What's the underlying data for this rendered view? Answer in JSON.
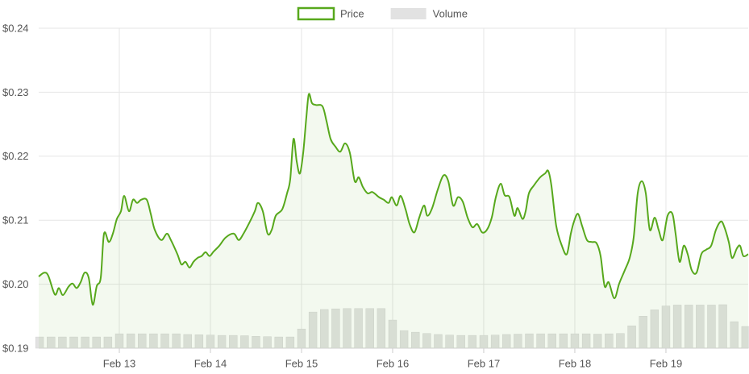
{
  "chart_data": {
    "type": "line",
    "xlim": [
      12.115,
      19.903
    ],
    "xticks": [
      {
        "value": 13,
        "label": "Feb 13"
      },
      {
        "value": 14,
        "label": "Feb 14"
      },
      {
        "value": 15,
        "label": "Feb 15"
      },
      {
        "value": 16,
        "label": "Feb 16"
      },
      {
        "value": 17,
        "label": "Feb 17"
      },
      {
        "value": 18,
        "label": "Feb 18"
      },
      {
        "value": 19,
        "label": "Feb 19"
      }
    ],
    "ylim": [
      0.19,
      0.24
    ],
    "yticks": [
      {
        "value": 0.19,
        "label": "$0.19"
      },
      {
        "value": 0.2,
        "label": "$0.20"
      },
      {
        "value": 0.21,
        "label": "$0.21"
      },
      {
        "value": 0.22,
        "label": "$0.22"
      },
      {
        "value": 0.23,
        "label": "$0.23"
      },
      {
        "value": 0.24,
        "label": "$0.24"
      }
    ],
    "y2lim": [
      0,
      100
    ],
    "grid": true,
    "legend": "top",
    "x": [
      12.115,
      12.177,
      12.221,
      12.292,
      12.336,
      12.381,
      12.442,
      12.487,
      12.531,
      12.575,
      12.619,
      12.664,
      12.708,
      12.752,
      12.796,
      12.832,
      12.885,
      12.929,
      12.973,
      13.018,
      13.053,
      13.106,
      13.15,
      13.195,
      13.239,
      13.301,
      13.345,
      13.389,
      13.46,
      13.522,
      13.566,
      13.637,
      13.681,
      13.726,
      13.77,
      13.814,
      13.858,
      13.903,
      13.947,
      13.991,
      14.035,
      14.097,
      14.168,
      14.257,
      14.31,
      14.363,
      14.434,
      14.487,
      14.522,
      14.575,
      14.628,
      14.673,
      14.717,
      14.788,
      14.841,
      14.876,
      14.912,
      14.947,
      14.982,
      15.018,
      15.053,
      15.08,
      15.115,
      15.159,
      15.23,
      15.274,
      15.319,
      15.372,
      15.425,
      15.478,
      15.531,
      15.584,
      15.628,
      15.673,
      15.726,
      15.779,
      15.85,
      15.903,
      15.956,
      15.991,
      16.044,
      16.088,
      16.142,
      16.186,
      16.239,
      16.292,
      16.345,
      16.381,
      16.434,
      16.496,
      16.558,
      16.611,
      16.664,
      16.717,
      16.77,
      16.823,
      16.876,
      16.929,
      16.982,
      17.035,
      17.088,
      17.133,
      17.186,
      17.23,
      17.283,
      17.336,
      17.372,
      17.425,
      17.46,
      17.496,
      17.549,
      17.619,
      17.673,
      17.708,
      17.743,
      17.796,
      17.858,
      17.912,
      17.956,
      17.991,
      18.035,
      18.08,
      18.133,
      18.186,
      18.239,
      18.283,
      18.327,
      18.372,
      18.434,
      18.487,
      18.549,
      18.602,
      18.646,
      18.69,
      18.735,
      18.779,
      18.823,
      18.876,
      18.92,
      18.965,
      19.018,
      19.071,
      19.106,
      19.15,
      19.195,
      19.239,
      19.283,
      19.336,
      19.389,
      19.442,
      19.496,
      19.549,
      19.602,
      19.637,
      19.69,
      19.726,
      19.779,
      19.814,
      19.85,
      19.903
    ],
    "series": [
      {
        "name": "Price",
        "color": "#57a81c",
        "values": [
          0.2012,
          0.2018,
          0.2013,
          0.1984,
          0.1994,
          0.1983,
          0.1996,
          0.2001,
          0.1994,
          0.2003,
          0.2018,
          0.201,
          0.1968,
          0.1997,
          0.201,
          0.2079,
          0.2066,
          0.2079,
          0.2102,
          0.2114,
          0.2138,
          0.2114,
          0.2132,
          0.2127,
          0.2132,
          0.2132,
          0.211,
          0.2085,
          0.2069,
          0.2079,
          0.2069,
          0.2047,
          0.2031,
          0.2035,
          0.2026,
          0.2035,
          0.2041,
          0.2044,
          0.205,
          0.2044,
          0.2051,
          0.206,
          0.2073,
          0.2079,
          0.2069,
          0.2079,
          0.2098,
          0.2114,
          0.2127,
          0.2114,
          0.2079,
          0.2085,
          0.2107,
          0.2117,
          0.2142,
          0.2164,
          0.2227,
          0.2192,
          0.2173,
          0.2205,
          0.2261,
          0.2297,
          0.2283,
          0.228,
          0.2278,
          0.2255,
          0.2227,
          0.2215,
          0.2207,
          0.222,
          0.2205,
          0.2161,
          0.2167,
          0.2152,
          0.2142,
          0.2144,
          0.2136,
          0.2132,
          0.2127,
          0.2136,
          0.2123,
          0.2138,
          0.2117,
          0.2094,
          0.2081,
          0.2104,
          0.2123,
          0.2107,
          0.2119,
          0.2148,
          0.217,
          0.2161,
          0.2123,
          0.2136,
          0.2129,
          0.2104,
          0.2089,
          0.2094,
          0.2081,
          0.2085,
          0.2104,
          0.2136,
          0.2157,
          0.2139,
          0.2136,
          0.2107,
          0.2119,
          0.2102,
          0.2114,
          0.2142,
          0.2154,
          0.2167,
          0.2173,
          0.2177,
          0.2154,
          0.2091,
          0.206,
          0.2047,
          0.2079,
          0.2098,
          0.211,
          0.2091,
          0.2069,
          0.2066,
          0.2064,
          0.2044,
          0.1997,
          0.2003,
          0.1978,
          0.2001,
          0.2022,
          0.2041,
          0.2073,
          0.2142,
          0.2161,
          0.2142,
          0.2085,
          0.2104,
          0.2085,
          0.2069,
          0.2107,
          0.211,
          0.2079,
          0.2035,
          0.206,
          0.2047,
          0.2022,
          0.2018,
          0.2047,
          0.2054,
          0.206,
          0.2085,
          0.2098,
          0.2091,
          0.2066,
          0.2041,
          0.2056,
          0.206,
          0.2044,
          0.2047
        ]
      },
      {
        "name": "Volume",
        "color": "#e2e2e2",
        "type": "bar",
        "axis": "y2",
        "x": [
          12.125,
          12.25,
          12.375,
          12.5,
          12.625,
          12.75,
          12.875,
          13,
          13.125,
          13.25,
          13.375,
          13.5,
          13.625,
          13.75,
          13.875,
          14,
          14.125,
          14.25,
          14.375,
          14.5,
          14.625,
          14.75,
          14.875,
          15,
          15.125,
          15.25,
          15.375,
          15.5,
          15.625,
          15.75,
          15.875,
          16,
          16.125,
          16.25,
          16.375,
          16.5,
          16.625,
          16.75,
          16.875,
          17,
          17.125,
          17.25,
          17.375,
          17.5,
          17.625,
          17.75,
          17.875,
          18,
          18.125,
          18.25,
          18.375,
          18.5,
          18.625,
          18.75,
          18.875,
          19,
          19.125,
          19.25,
          19.375,
          19.5,
          19.625,
          19.75,
          19.875
        ],
        "values": [
          3.5,
          3.5,
          3.5,
          3.5,
          3.5,
          3.5,
          3.5,
          4.5,
          4.5,
          4.5,
          4.5,
          4.5,
          4.5,
          4.3,
          4.2,
          4.1,
          4,
          4,
          3.9,
          3.7,
          3.6,
          3.5,
          3.5,
          6,
          11.3,
          12.1,
          12.3,
          12.4,
          12.4,
          12.4,
          12.4,
          8.8,
          5.5,
          5,
          4.6,
          4.3,
          4.1,
          4,
          4,
          4,
          4.1,
          4.3,
          4.4,
          4.5,
          4.5,
          4.5,
          4.5,
          4.5,
          4.5,
          4.4,
          4.5,
          4.6,
          7,
          10,
          12,
          13.2,
          13.5,
          13.5,
          13.5,
          13.5,
          13.6,
          8.3,
          6.8
        ]
      }
    ]
  }
}
